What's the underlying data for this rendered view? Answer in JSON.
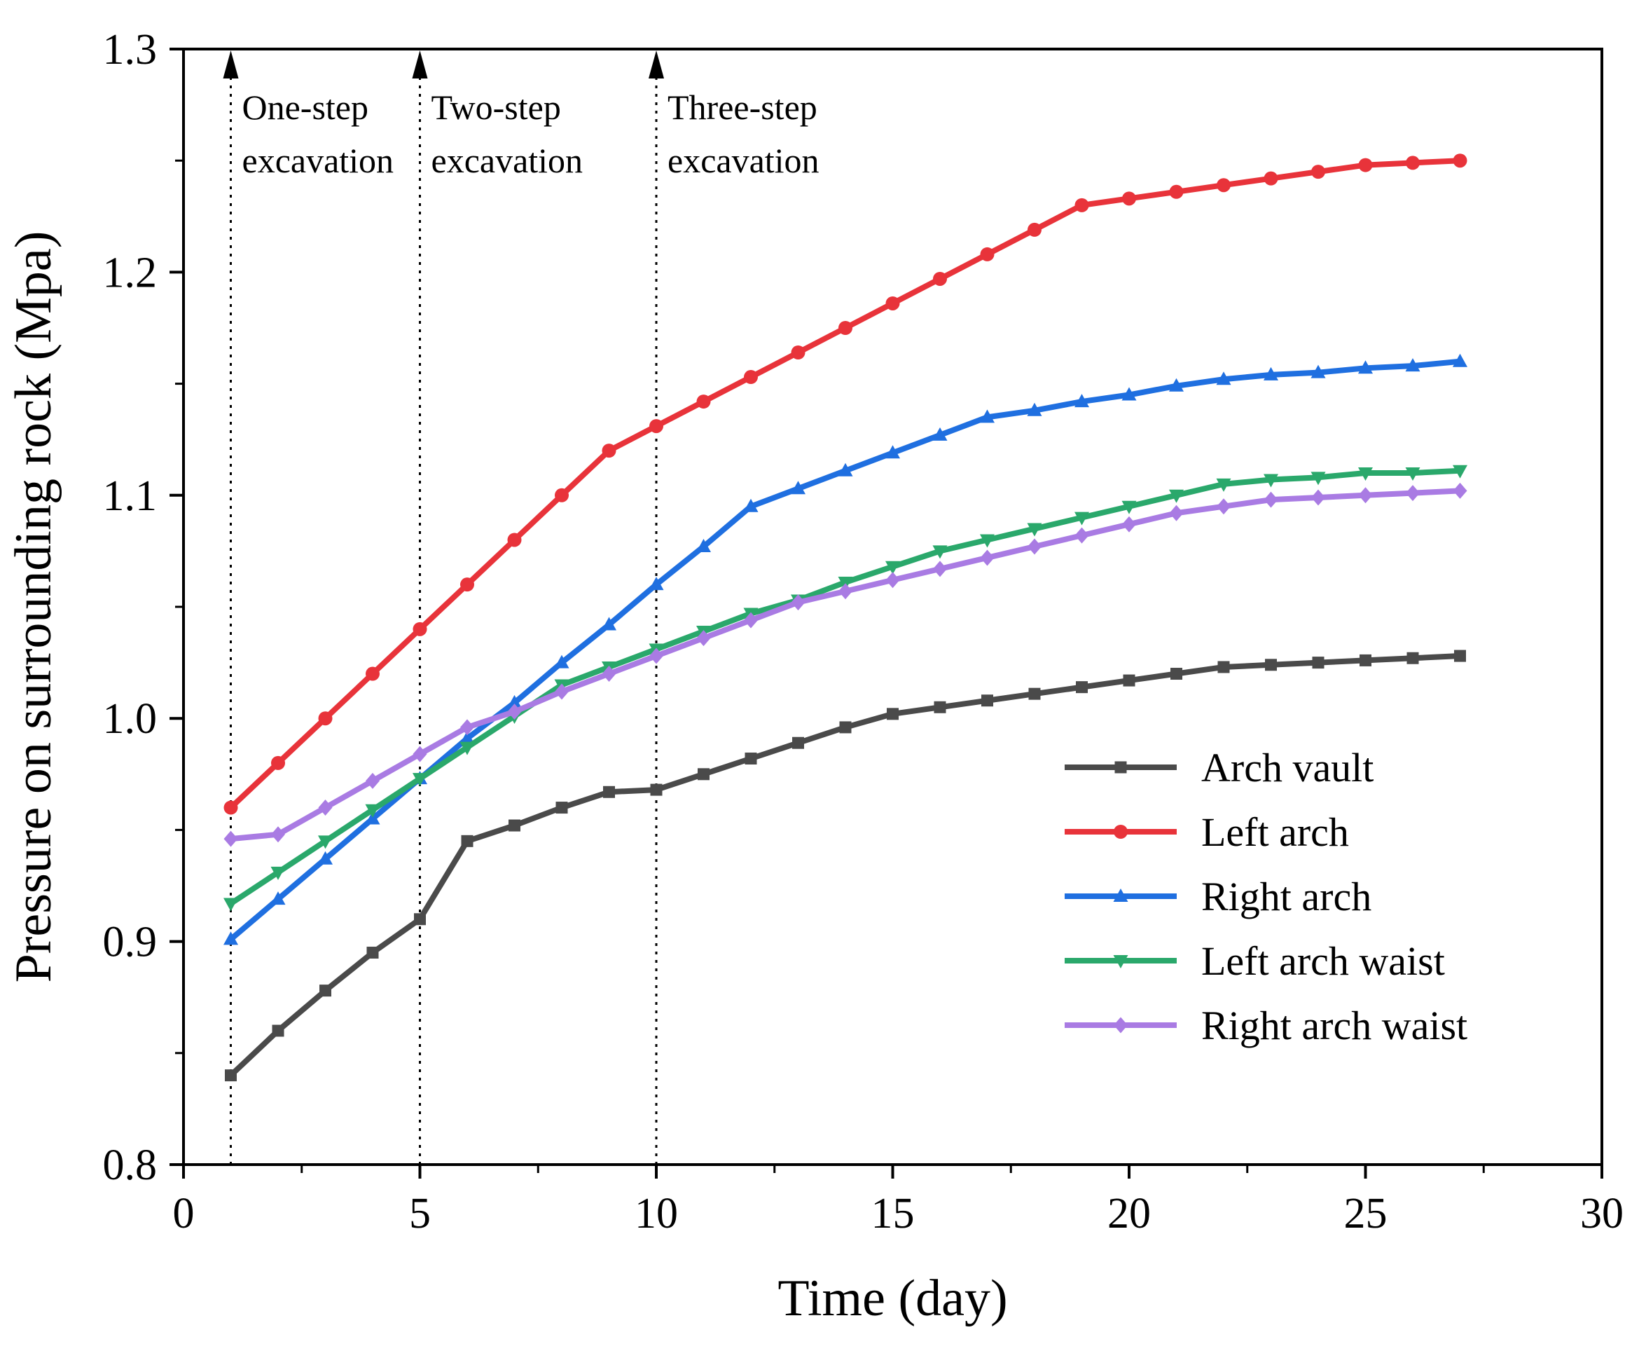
{
  "chart_data": {
    "type": "line",
    "xlabel": "Time (day)",
    "ylabel": "Pressure on surrounding rock (Mpa)",
    "xlim": [
      0,
      30
    ],
    "ylim": [
      0.8,
      1.3
    ],
    "xticks": [
      "0",
      "5",
      "10",
      "15",
      "20",
      "25",
      "30"
    ],
    "yticks": [
      "0.8",
      "0.9",
      "1.0",
      "1.1",
      "1.2",
      "1.3"
    ],
    "x": [
      1,
      2,
      3,
      4,
      5,
      6,
      7,
      8,
      9,
      10,
      11,
      12,
      13,
      14,
      15,
      16,
      17,
      18,
      19,
      20,
      21,
      22,
      23,
      24,
      25,
      26,
      27
    ],
    "series": [
      {
        "name": "Arch vault",
        "color": "#4a4a4a",
        "marker": "square",
        "values": [
          0.84,
          0.86,
          0.878,
          0.895,
          0.91,
          0.945,
          0.952,
          0.96,
          0.967,
          0.968,
          0.975,
          0.982,
          0.989,
          0.996,
          1.002,
          1.005,
          1.008,
          1.011,
          1.014,
          1.017,
          1.02,
          1.023,
          1.024,
          1.025,
          1.026,
          1.027,
          1.028
        ]
      },
      {
        "name": "Left arch",
        "color": "#e8333a",
        "marker": "circle",
        "values": [
          0.96,
          0.98,
          1.0,
          1.02,
          1.04,
          1.06,
          1.08,
          1.1,
          1.12,
          1.131,
          1.142,
          1.153,
          1.164,
          1.175,
          1.186,
          1.197,
          1.208,
          1.219,
          1.23,
          1.233,
          1.236,
          1.239,
          1.242,
          1.245,
          1.248,
          1.249,
          1.25
        ]
      },
      {
        "name": "Right arch",
        "color": "#1f6fe0",
        "marker": "triangle-up",
        "values": [
          0.901,
          0.919,
          0.937,
          0.955,
          0.973,
          0.991,
          1.007,
          1.025,
          1.042,
          1.06,
          1.077,
          1.095,
          1.103,
          1.111,
          1.119,
          1.127,
          1.135,
          1.138,
          1.142,
          1.145,
          1.149,
          1.152,
          1.154,
          1.155,
          1.157,
          1.158,
          1.16
        ]
      },
      {
        "name": "Left arch waist",
        "color": "#2aa86b",
        "marker": "triangle-down",
        "values": [
          0.917,
          0.931,
          0.945,
          0.959,
          0.973,
          0.987,
          1.001,
          1.015,
          1.023,
          1.031,
          1.039,
          1.047,
          1.053,
          1.061,
          1.068,
          1.075,
          1.08,
          1.085,
          1.09,
          1.095,
          1.1,
          1.105,
          1.107,
          1.108,
          1.11,
          1.11,
          1.111
        ]
      },
      {
        "name": "Right arch waist",
        "color": "#a97be3",
        "marker": "diamond",
        "values": [
          0.946,
          0.948,
          0.96,
          0.972,
          0.984,
          0.996,
          1.003,
          1.012,
          1.02,
          1.028,
          1.036,
          1.044,
          1.052,
          1.057,
          1.062,
          1.067,
          1.072,
          1.077,
          1.082,
          1.087,
          1.092,
          1.095,
          1.098,
          1.099,
          1.1,
          1.101,
          1.102
        ]
      }
    ],
    "annotations": [
      {
        "x": 1,
        "lines": [
          "One-step",
          "excavation"
        ]
      },
      {
        "x": 5,
        "lines": [
          "Two-step",
          "excavation"
        ]
      },
      {
        "x": 10,
        "lines": [
          "Three-step",
          "excavation"
        ]
      }
    ],
    "legend_position": "bottom-right",
    "grid": false
  }
}
